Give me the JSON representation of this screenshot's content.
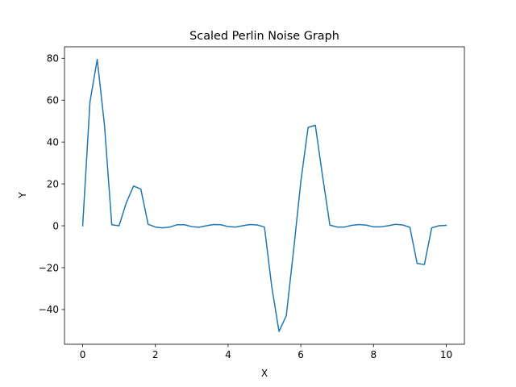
{
  "chart_data": {
    "type": "line",
    "title": "Scaled Perlin Noise Graph",
    "xlabel": "X",
    "ylabel": "Y",
    "xlim": [
      -0.5,
      10.5
    ],
    "ylim": [
      -56.6,
      85.5
    ],
    "xticks": [
      0,
      2,
      4,
      6,
      8,
      10
    ],
    "yticks": [
      -40,
      -20,
      0,
      20,
      40,
      60,
      80
    ],
    "grid": false,
    "series": [
      {
        "color": "#1f77b4",
        "x": [
          0,
          0.2,
          0.4,
          0.6,
          0.8,
          1.0,
          1.2,
          1.4,
          1.6,
          1.8,
          2.0,
          2.2,
          2.4,
          2.6,
          2.8,
          3.0,
          3.2,
          3.4,
          3.6,
          3.8,
          4.0,
          4.2,
          4.4,
          4.6,
          4.8,
          5.0,
          5.2,
          5.4,
          5.6,
          5.8,
          6.0,
          6.2,
          6.4,
          6.6,
          6.8,
          7.0,
          7.2,
          7.4,
          7.6,
          7.8,
          8.0,
          8.2,
          8.4,
          8.6,
          8.8,
          9.0,
          9.2,
          9.4,
          9.6,
          9.8,
          10.0
        ],
        "y": [
          0,
          59,
          79.5,
          48,
          0.5,
          0,
          11,
          19,
          17.5,
          0.7,
          -0.6,
          -1,
          -0.6,
          0.5,
          0.5,
          -0.4,
          -0.7,
          0,
          0.6,
          0.5,
          -0.4,
          -0.6,
          0,
          0.6,
          0.4,
          -0.6,
          -29,
          -50.5,
          -43,
          -12,
          21,
          47,
          48,
          23.5,
          0.3,
          -0.6,
          -0.6,
          0.2,
          0.6,
          0.3,
          -0.5,
          -0.5,
          0,
          0.7,
          0.4,
          -0.7,
          -18,
          -18.5,
          -1,
          0,
          0.2
        ]
      }
    ]
  }
}
